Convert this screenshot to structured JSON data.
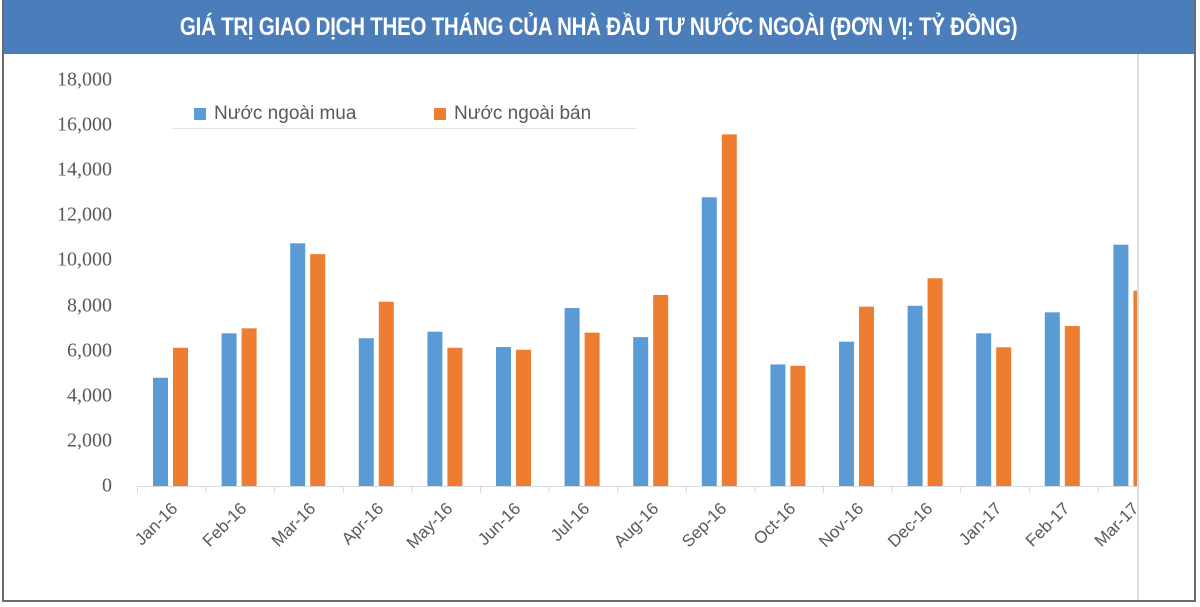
{
  "header": {
    "title": "GIÁ TRỊ GIAO DỊCH THEO THÁNG CỦA NHÀ ĐẦU TƯ NƯỚC NGOÀI (ĐƠN VỊ: TỶ ĐỒNG)"
  },
  "colors": {
    "header_bg": "#4a7db9",
    "buy": "#5b9bd5",
    "sell": "#ed7d31",
    "axis_text": "#595959"
  },
  "legend": {
    "buy_label": "Nước ngoài mua",
    "sell_label": "Nước ngoài bán"
  },
  "yaxis": {
    "ticks": [
      "18,000",
      "16,000",
      "14,000",
      "12,000",
      "10,000",
      "8,000",
      "6,000",
      "4,000",
      "2,000",
      "0"
    ]
  },
  "chart_data": {
    "type": "bar",
    "title": "GIÁ TRỊ GIAO DỊCH THEO THÁNG CỦA NHÀ ĐẦU TƯ NƯỚC NGOÀI (ĐƠN VỊ: TỶ ĐỒNG)",
    "xlabel": "",
    "ylabel": "",
    "ylim": [
      0,
      18000
    ],
    "yticks": [
      0,
      2000,
      4000,
      6000,
      8000,
      10000,
      12000,
      14000,
      16000,
      18000
    ],
    "grid": false,
    "legend_position": "top-left",
    "categories": [
      "Jan-16",
      "Feb-16",
      "Mar-16",
      "Apr-16",
      "May-16",
      "Jun-16",
      "Jul-16",
      "Aug-16",
      "Sep-16",
      "Oct-16",
      "Nov-16",
      "Dec-16",
      "Jan-17",
      "Feb-17",
      "Mar-17"
    ],
    "series": [
      {
        "name": "Nước ngoài mua",
        "color": "#5b9bd5",
        "values": [
          4800,
          6770,
          10760,
          6550,
          6840,
          6160,
          7890,
          6600,
          12800,
          5390,
          6400,
          7990,
          6770,
          7700,
          10700
        ]
      },
      {
        "name": "Nước ngoài bán",
        "color": "#ed7d31",
        "values": [
          6130,
          6990,
          10280,
          8170,
          6130,
          6040,
          6800,
          8470,
          15590,
          5330,
          7950,
          9210,
          6150,
          7090,
          8660
        ]
      }
    ]
  }
}
